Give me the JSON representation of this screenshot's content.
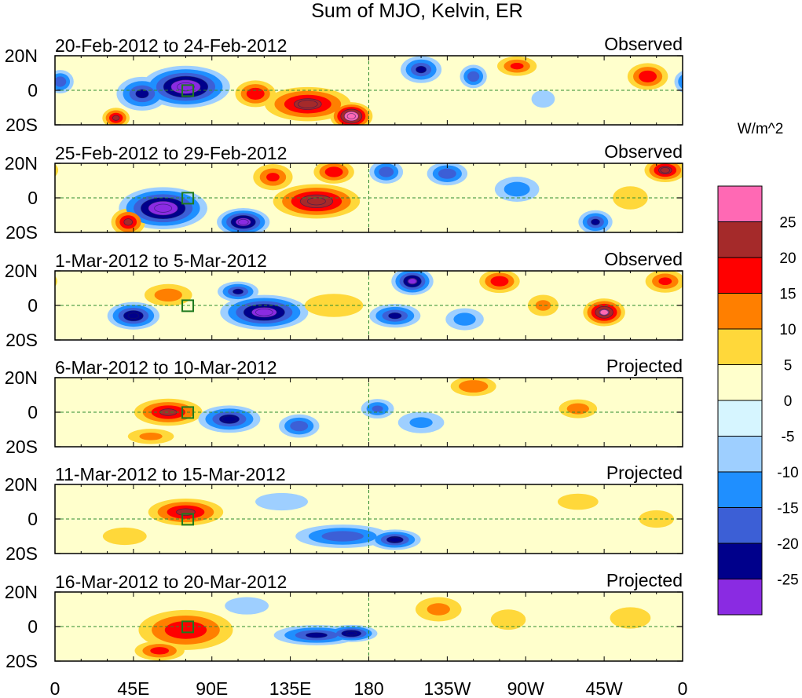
{
  "chart_data": {
    "type": "heatmap",
    "title": "Sum of MJO, Kelvin, ER",
    "units": "W/m^2",
    "x_ticks": [
      "0",
      "45E",
      "90E",
      "135E",
      "180",
      "135W",
      "90W",
      "45W",
      "0"
    ],
    "y_ticks": [
      "20N",
      "0",
      "20S"
    ],
    "x_range_deg": [
      0,
      360
    ],
    "y_range_deg": [
      -20,
      20
    ],
    "colorbar": {
      "labels": [
        "25",
        "20",
        "15",
        "10",
        "5",
        "0",
        "-5",
        "-10",
        "-15",
        "-20",
        "-25"
      ],
      "levels": [
        25,
        20,
        15,
        10,
        5,
        0,
        -5,
        -10,
        -15,
        -20,
        -25
      ],
      "colors": [
        "#ff69b4",
        "#a52a2a",
        "#ff0000",
        "#ff7f00",
        "#ffd83a",
        "#ffffcc",
        "#d6f5ff",
        "#9ecfff",
        "#1f8fff",
        "#3c5fd6",
        "#00008b",
        "#8a2be2"
      ]
    },
    "panels": [
      {
        "dates": "20-Feb-2012 to 24-Feb-2012",
        "label": "Observed",
        "anomalies": [
          {
            "lon": 75,
            "lat": 2,
            "rx": 25,
            "ry": 12,
            "v": -30
          },
          {
            "lon": 50,
            "lat": -2,
            "rx": 15,
            "ry": 10,
            "v": -20
          },
          {
            "lon": 3,
            "lat": 5,
            "rx": 8,
            "ry": 7,
            "v": -18
          },
          {
            "lon": 145,
            "lat": -8,
            "rx": 25,
            "ry": 10,
            "v": 22
          },
          {
            "lon": 170,
            "lat": -15,
            "rx": 12,
            "ry": 8,
            "v": 30
          },
          {
            "lon": 115,
            "lat": -2,
            "rx": 12,
            "ry": 8,
            "v": 18
          },
          {
            "lon": 210,
            "lat": 12,
            "rx": 12,
            "ry": 8,
            "v": -20
          },
          {
            "lon": 240,
            "lat": 8,
            "rx": 8,
            "ry": 7,
            "v": -18
          },
          {
            "lon": 265,
            "lat": 14,
            "rx": 12,
            "ry": 6,
            "v": 15
          },
          {
            "lon": 340,
            "lat": 8,
            "rx": 12,
            "ry": 8,
            "v": 18
          },
          {
            "lon": 35,
            "lat": -16,
            "rx": 8,
            "ry": 6,
            "v": 20
          },
          {
            "lon": 280,
            "lat": -5,
            "rx": 8,
            "ry": 6,
            "v": -8
          }
        ]
      },
      {
        "dates": "25-Feb-2012 to 29-Feb-2012",
        "label": "Observed",
        "anomalies": [
          {
            "lon": 62,
            "lat": -6,
            "rx": 25,
            "ry": 12,
            "v": -30
          },
          {
            "lon": 108,
            "lat": -14,
            "rx": 15,
            "ry": 8,
            "v": -28
          },
          {
            "lon": 42,
            "lat": -14,
            "rx": 10,
            "ry": 8,
            "v": 20
          },
          {
            "lon": 150,
            "lat": -2,
            "rx": 25,
            "ry": 10,
            "v": 24
          },
          {
            "lon": 125,
            "lat": 12,
            "rx": 12,
            "ry": 8,
            "v": 15
          },
          {
            "lon": 160,
            "lat": 15,
            "rx": 12,
            "ry": 7,
            "v": 18
          },
          {
            "lon": 190,
            "lat": 15,
            "rx": 10,
            "ry": 7,
            "v": -18
          },
          {
            "lon": 225,
            "lat": 14,
            "rx": 12,
            "ry": 7,
            "v": -18
          },
          {
            "lon": 310,
            "lat": -14,
            "rx": 10,
            "ry": 7,
            "v": -20
          },
          {
            "lon": 350,
            "lat": 16,
            "rx": 12,
            "ry": 7,
            "v": 22
          },
          {
            "lon": 265,
            "lat": 5,
            "rx": 14,
            "ry": 8,
            "v": -12
          },
          {
            "lon": 330,
            "lat": 0,
            "rx": 12,
            "ry": 8,
            "v": 8
          }
        ]
      },
      {
        "dates": "1-Mar-2012 to 5-Mar-2012",
        "label": "Observed",
        "anomalies": [
          {
            "lon": 120,
            "lat": -4,
            "rx": 25,
            "ry": 10,
            "v": -28
          },
          {
            "lon": 45,
            "lat": -6,
            "rx": 15,
            "ry": 8,
            "v": -24
          },
          {
            "lon": 105,
            "lat": 8,
            "rx": 12,
            "ry": 6,
            "v": -20
          },
          {
            "lon": 205,
            "lat": 14,
            "rx": 12,
            "ry": 8,
            "v": -26
          },
          {
            "lon": 255,
            "lat": 14,
            "rx": 12,
            "ry": 7,
            "v": 18
          },
          {
            "lon": 315,
            "lat": -4,
            "rx": 12,
            "ry": 8,
            "v": 26
          },
          {
            "lon": 350,
            "lat": 14,
            "rx": 12,
            "ry": 7,
            "v": 15
          },
          {
            "lon": 195,
            "lat": -6,
            "rx": 15,
            "ry": 7,
            "v": -20
          },
          {
            "lon": 65,
            "lat": 6,
            "rx": 15,
            "ry": 7,
            "v": 12
          },
          {
            "lon": 160,
            "lat": 0,
            "rx": 20,
            "ry": 8,
            "v": 8
          },
          {
            "lon": 235,
            "lat": -8,
            "rx": 12,
            "ry": 7,
            "v": -12
          },
          {
            "lon": 280,
            "lat": 0,
            "rx": 10,
            "ry": 7,
            "v": 10
          }
        ]
      },
      {
        "dates": "6-Mar-2012 to 10-Mar-2012",
        "label": "Projected",
        "anomalies": [
          {
            "lon": 65,
            "lat": 0,
            "rx": 20,
            "ry": 8,
            "v": 20
          },
          {
            "lon": 100,
            "lat": -4,
            "rx": 18,
            "ry": 8,
            "v": -22
          },
          {
            "lon": 140,
            "lat": -8,
            "rx": 12,
            "ry": 7,
            "v": -18
          },
          {
            "lon": 185,
            "lat": 2,
            "rx": 10,
            "ry": 6,
            "v": -15
          },
          {
            "lon": 240,
            "lat": 15,
            "rx": 14,
            "ry": 6,
            "v": 14
          },
          {
            "lon": 300,
            "lat": 2,
            "rx": 12,
            "ry": 6,
            "v": 12
          },
          {
            "lon": 55,
            "lat": -14,
            "rx": 15,
            "ry": 5,
            "v": 10
          },
          {
            "lon": 210,
            "lat": -6,
            "rx": 15,
            "ry": 7,
            "v": -10
          }
        ]
      },
      {
        "dates": "11-Mar-2012 to 15-Mar-2012",
        "label": "Projected",
        "anomalies": [
          {
            "lon": 75,
            "lat": 4,
            "rx": 22,
            "ry": 8,
            "v": 20
          },
          {
            "lon": 165,
            "lat": -10,
            "rx": 28,
            "ry": 7,
            "v": -18
          },
          {
            "lon": 195,
            "lat": -12,
            "rx": 15,
            "ry": 6,
            "v": -22
          },
          {
            "lon": 40,
            "lat": -10,
            "rx": 15,
            "ry": 6,
            "v": 8
          },
          {
            "lon": 130,
            "lat": 10,
            "rx": 18,
            "ry": 6,
            "v": -8
          },
          {
            "lon": 300,
            "lat": 10,
            "rx": 15,
            "ry": 6,
            "v": 6
          },
          {
            "lon": 345,
            "lat": 0,
            "rx": 12,
            "ry": 6,
            "v": 8
          }
        ]
      },
      {
        "dates": "16-Mar-2012 to 20-Mar-2012",
        "label": "Projected",
        "anomalies": [
          {
            "lon": 75,
            "lat": -2,
            "rx": 28,
            "ry": 12,
            "v": 18
          },
          {
            "lon": 60,
            "lat": -14,
            "rx": 15,
            "ry": 6,
            "v": 16
          },
          {
            "lon": 150,
            "lat": -5,
            "rx": 25,
            "ry": 6,
            "v": -20
          },
          {
            "lon": 170,
            "lat": -4,
            "rx": 15,
            "ry": 5,
            "v": -24
          },
          {
            "lon": 220,
            "lat": 10,
            "rx": 15,
            "ry": 8,
            "v": 10
          },
          {
            "lon": 260,
            "lat": 4,
            "rx": 12,
            "ry": 7,
            "v": 8
          },
          {
            "lon": 330,
            "lat": 5,
            "rx": 15,
            "ry": 8,
            "v": 6
          },
          {
            "lon": 110,
            "lat": 12,
            "rx": 15,
            "ry": 6,
            "v": -8
          }
        ]
      }
    ]
  }
}
